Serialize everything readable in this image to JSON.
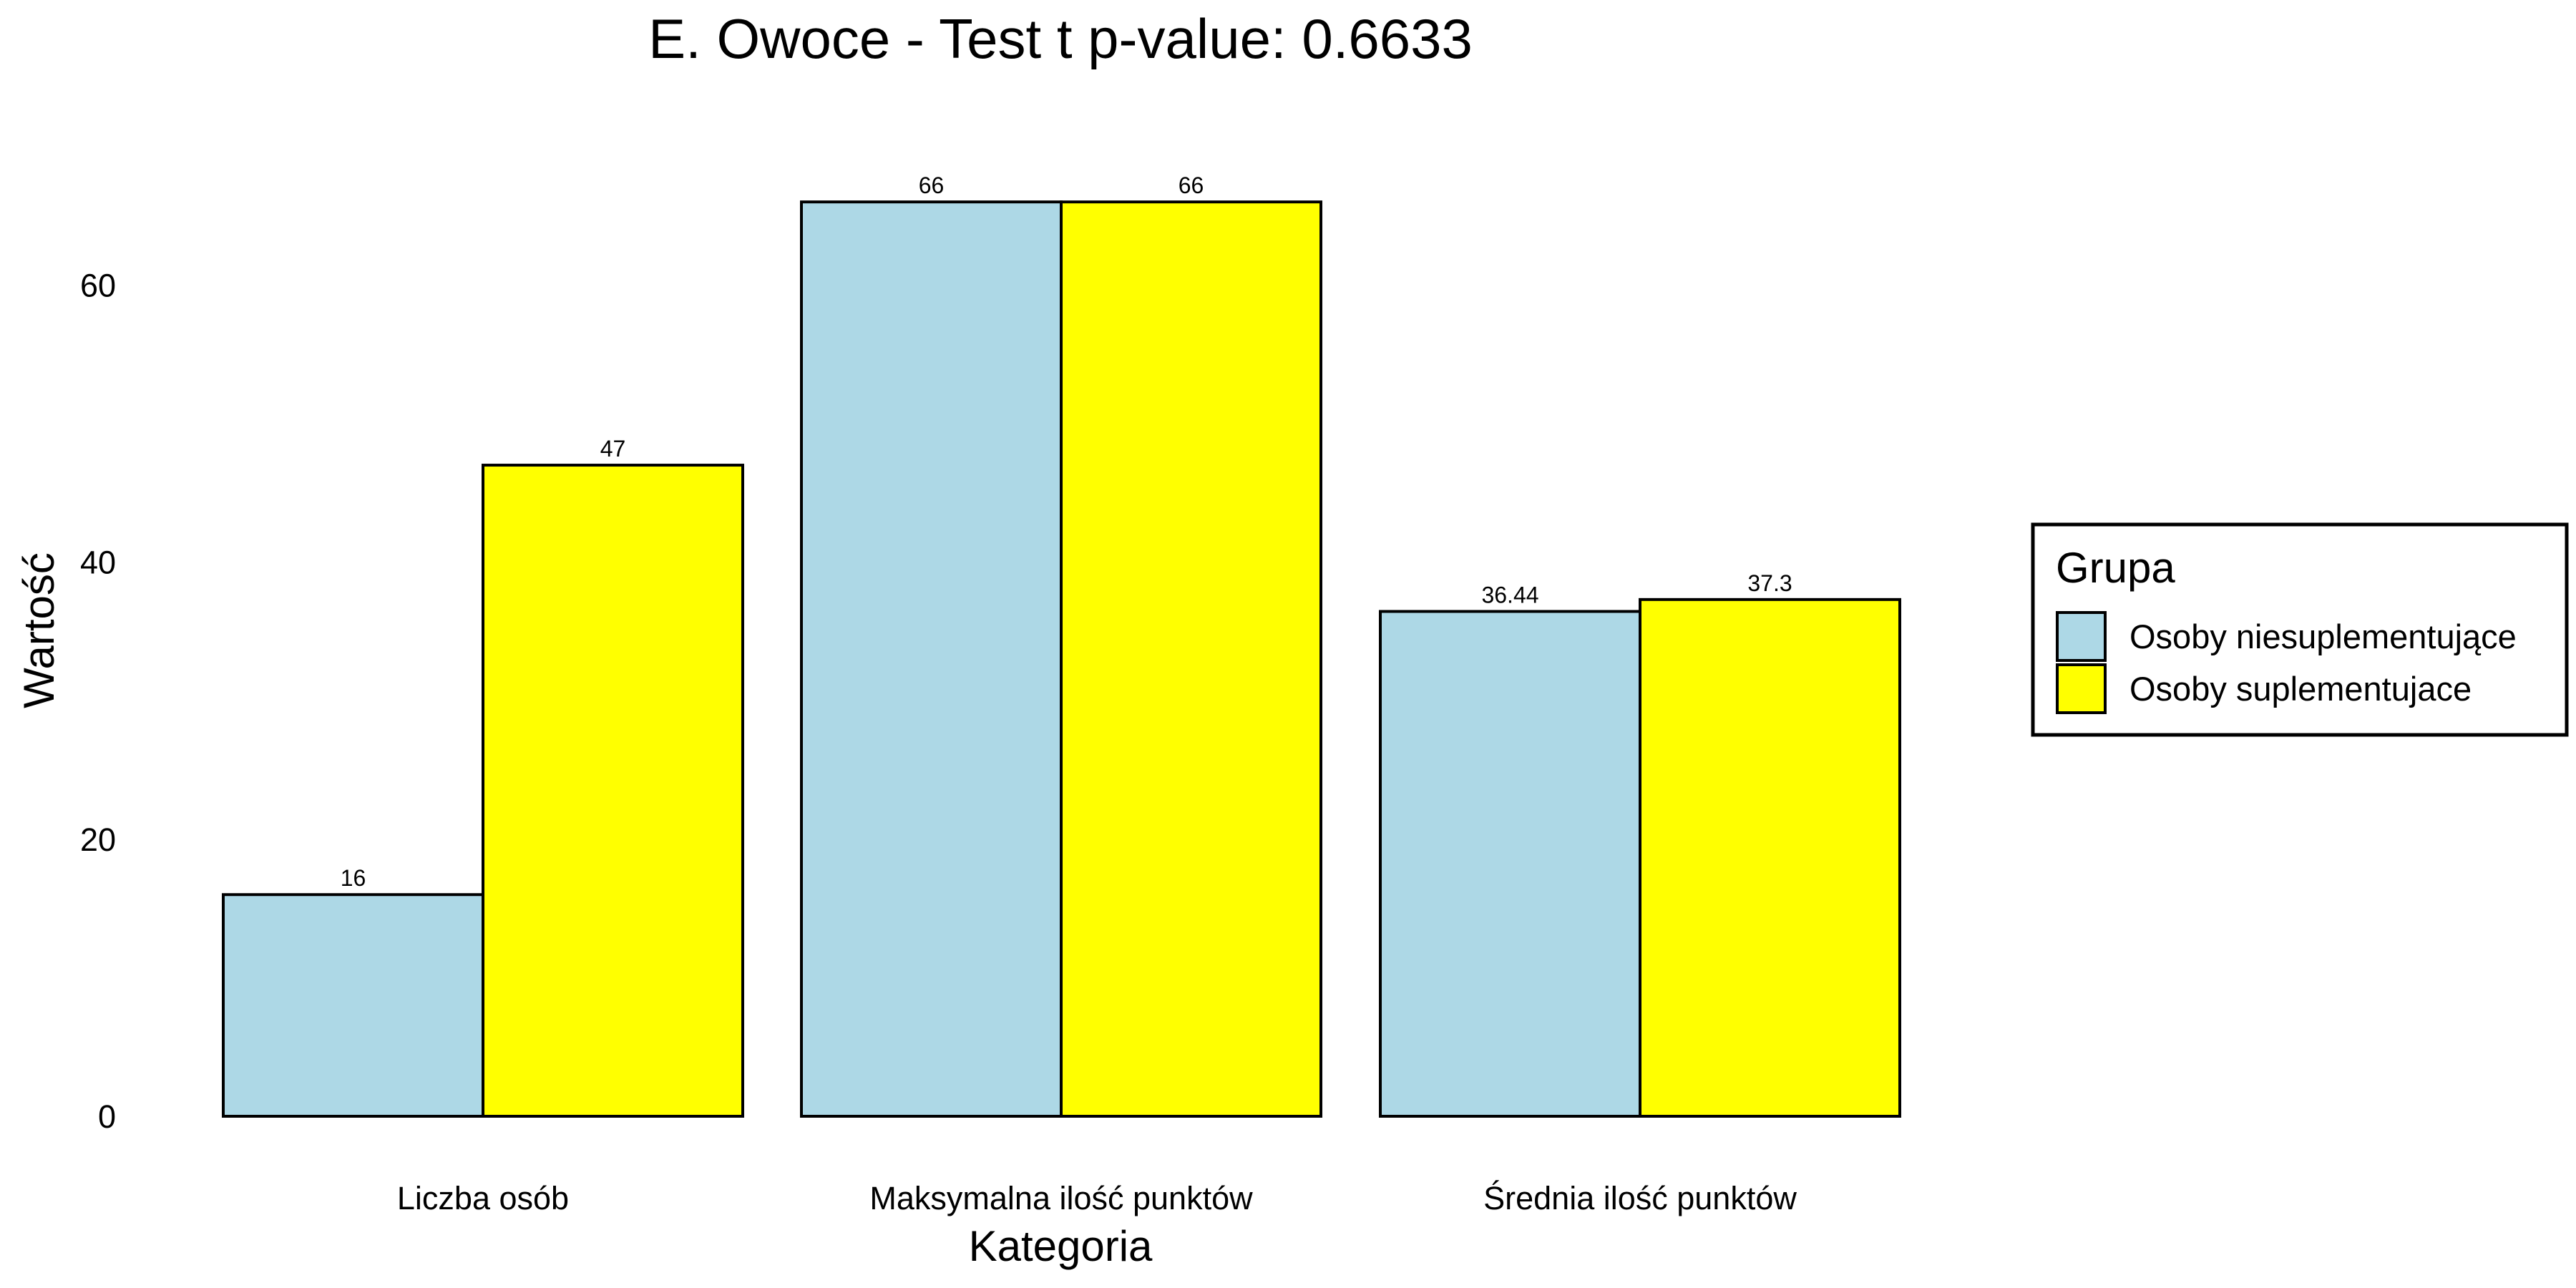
{
  "chart_data": {
    "type": "bar",
    "title": "E. Owoce - Test t p-value: 0.6633",
    "xlabel": "Kategoria",
    "ylabel": "Wartość",
    "categories": [
      "Liczba osób",
      "Maksymalna ilość punktów",
      "Średnia ilość punktów"
    ],
    "series": [
      {
        "name": "Osoby niesuplementujące",
        "color": "#add8e6",
        "values": [
          16,
          66,
          36.44
        ],
        "labels": [
          "16",
          "66",
          "36.44"
        ]
      },
      {
        "name": "Osoby suplementujace",
        "color": "#ffff00",
        "values": [
          47,
          66,
          37.3
        ],
        "labels": [
          "47",
          "66",
          "37.3"
        ]
      }
    ],
    "yticks": [
      "0",
      "20",
      "40",
      "60"
    ],
    "ylim": [
      0,
      70.4
    ],
    "grid": false,
    "legend": {
      "title": "Grupa",
      "position": "right"
    }
  }
}
